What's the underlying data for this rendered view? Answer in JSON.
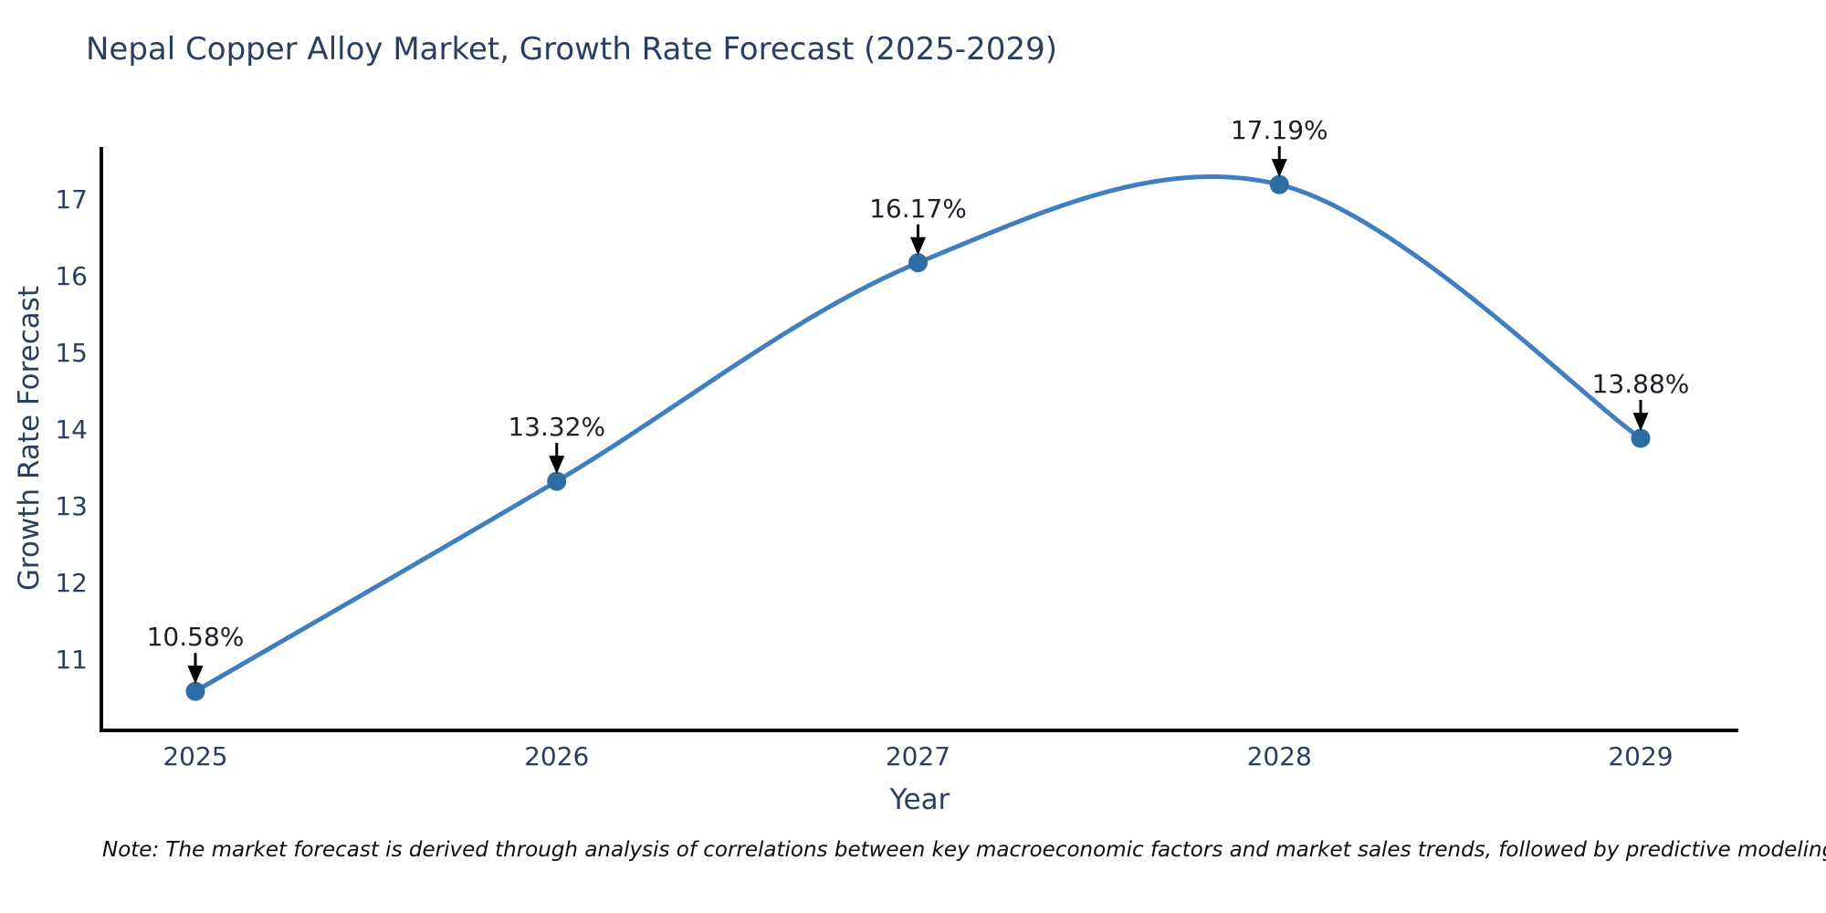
{
  "title": "Nepal Copper Alloy Market, Growth Rate Forecast (2025-2029)",
  "note": "Note: The market forecast is derived through analysis of correlations between key macroeconomic factors and market sales trends, followed by predictive modeling to project future sales",
  "chart_data": {
    "type": "line",
    "line_shape": "spline",
    "title": "Nepal Copper Alloy Market, Growth Rate Forecast (2025-2029)",
    "xlabel": "Year",
    "ylabel": "Growth Rate Forecast",
    "categories": [
      "2025",
      "2026",
      "2027",
      "2028",
      "2029"
    ],
    "series": [
      {
        "name": "Growth Rate Forecast",
        "values": [
          10.58,
          13.32,
          16.17,
          17.19,
          13.88
        ],
        "point_labels": [
          "10.58%",
          "13.32%",
          "16.17%",
          "17.19%",
          "13.88%"
        ]
      }
    ],
    "yticks": [
      11,
      12,
      13,
      14,
      15,
      16,
      17
    ],
    "ylim": [
      10.07,
      17.68
    ],
    "grid": false,
    "legend": false,
    "annotations_have_arrows": true,
    "colors": {
      "line": "#3f7fbf",
      "marker": "#2e6da4",
      "annotation_text": "#1c1f26",
      "arrow": "#000000",
      "axis_line": "#000000",
      "text": "#2a3f5f",
      "background": "#ffffff"
    }
  }
}
